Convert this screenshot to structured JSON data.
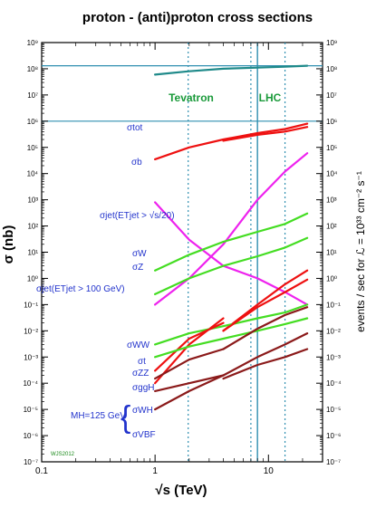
{
  "chart_data": {
    "type": "line",
    "title": "proton - (anti)proton cross sections",
    "xlabel": "√s  (TeV)",
    "ylabel_left": "σ  (nb)",
    "ylabel_right": "events / sec for ℒ = 10³³ cm⁻² s⁻¹",
    "x_scale": "log",
    "y_scale": "log",
    "xlim": [
      0.1,
      30
    ],
    "ylim": [
      1e-07,
      1000000000.0
    ],
    "x_ticks": [
      "0.1",
      "1",
      "10"
    ],
    "x_tick_values": [
      0.1,
      1,
      10
    ],
    "y_ticks_left": [
      "10⁻⁷",
      "10⁻⁶",
      "10⁻⁵",
      "10⁻⁴",
      "10⁻³",
      "10⁻²",
      "10⁻¹",
      "10⁰",
      "10¹",
      "10²",
      "10³",
      "10⁴",
      "10⁵",
      "10⁶",
      "10⁷",
      "10⁸",
      "10⁹"
    ],
    "y_ticks_right": [
      "10⁻⁷",
      "10⁻⁶",
      "10⁻⁵",
      "10⁻⁴",
      "10⁻³",
      "10⁻²",
      "10⁻¹",
      "10⁰",
      "10¹",
      "10²",
      "10³",
      "10⁴",
      "10⁵",
      "10⁶",
      "10⁷",
      "10⁸",
      "10⁹"
    ],
    "y_tick_exponents": [
      -7,
      -6,
      -5,
      -4,
      -3,
      -2,
      -1,
      0,
      1,
      2,
      3,
      4,
      5,
      6,
      7,
      8,
      9
    ],
    "reference_lines": {
      "horizontal_y": [
        130000000.0,
        1000000.0
      ],
      "vertical_dotted_x": [
        1.96,
        7,
        14
      ],
      "vertical_solid_x": [
        8
      ],
      "color": "#2f8fb0"
    },
    "region_labels": [
      {
        "text": "Tevatron",
        "color": "#1a9a3a"
      },
      {
        "text": "LHC",
        "color": "#1a9a3a"
      }
    ],
    "series": [
      {
        "name": "σtot",
        "color": "#1f8a8a",
        "segments": [
          [
            [
              1,
              60000000.0
            ],
            [
              2,
              80000000.0
            ],
            [
              4,
              100000000.0
            ],
            [
              8,
              110000000.0
            ],
            [
              14,
              120000000.0
            ],
            [
              22,
              130000000.0
            ]
          ]
        ]
      },
      {
        "name": "σb",
        "color": "#ee1111",
        "segments": [
          [
            [
              1,
              35000.0
            ],
            [
              2,
              100000.0
            ],
            [
              4,
              200000.0
            ],
            [
              8,
              350000.0
            ],
            [
              14,
              500000.0
            ],
            [
              22,
              800000.0
            ]
          ],
          [
            [
              4,
              180000.0
            ],
            [
              8,
              300000.0
            ],
            [
              14,
              400000.0
            ],
            [
              22,
              600000.0
            ]
          ]
        ]
      },
      {
        "name": "σjet(ETjet > √s/20)",
        "color": "#ee22ee",
        "segments": [
          [
            [
              1,
              0.1
            ],
            [
              2,
              1
            ],
            [
              4,
              20
            ],
            [
              8,
              1000.0
            ],
            [
              14,
              12000.0
            ],
            [
              22,
              60000.0
            ]
          ],
          [
            [
              1,
              800.0
            ],
            [
              2,
              30
            ],
            [
              4,
              3
            ],
            [
              8,
              1
            ],
            [
              14,
              0.3
            ],
            [
              22,
              0.1
            ]
          ]
        ]
      },
      {
        "name": "σW",
        "color": "#44dd22",
        "segments": [
          [
            [
              1,
              2
            ],
            [
              2,
              8
            ],
            [
              4,
              25
            ],
            [
              8,
              60
            ],
            [
              14,
              120
            ],
            [
              22,
              300
            ]
          ]
        ]
      },
      {
        "name": "σZ",
        "color": "#44dd22",
        "segments": [
          [
            [
              1,
              0.25
            ],
            [
              2,
              1
            ],
            [
              4,
              3
            ],
            [
              8,
              7
            ],
            [
              14,
              15
            ],
            [
              22,
              35
            ]
          ]
        ]
      },
      {
        "name": "σjet(ETjet > 100 GeV)",
        "color": "#ee1111",
        "segments": [
          [
            [
              1,
              0.0001
            ],
            [
              2,
              0.003
            ],
            [
              4,
              0.03
            ]
          ],
          [
            [
              4,
              0.01
            ],
            [
              8,
              0.1
            ],
            [
              14,
              0.6
            ],
            [
              22,
              2
            ]
          ]
        ]
      },
      {
        "name": "σWW",
        "color": "#44dd22",
        "segments": [
          [
            [
              1,
              0.003
            ],
            [
              2,
              0.008
            ],
            [
              4,
              0.015
            ],
            [
              8,
              0.03
            ],
            [
              14,
              0.05
            ],
            [
              22,
              0.1
            ]
          ]
        ]
      },
      {
        "name": "σt",
        "color": "#ee1111",
        "segments": [
          [
            [
              1,
              0.0003
            ],
            [
              2,
              0.005
            ],
            [
              4,
              0.02
            ]
          ],
          [
            [
              4,
              0.01
            ],
            [
              8,
              0.08
            ],
            [
              14,
              0.3
            ],
            [
              22,
              0.9
            ]
          ]
        ]
      },
      {
        "name": "σZZ",
        "color": "#44dd22",
        "segments": [
          [
            [
              1,
              0.001
            ],
            [
              2,
              0.0025
            ],
            [
              4,
              0.005
            ],
            [
              8,
              0.01
            ],
            [
              14,
              0.018
            ],
            [
              22,
              0.03
            ]
          ]
        ]
      },
      {
        "name": "σggH",
        "color": "#8b1a1a",
        "segments": [
          [
            [
              1,
              0.00015
            ],
            [
              2,
              0.0008
            ],
            [
              4,
              0.002
            ]
          ],
          [
            [
              4,
              0.002
            ],
            [
              8,
              0.012
            ],
            [
              14,
              0.04
            ],
            [
              22,
              0.08
            ]
          ]
        ]
      },
      {
        "name": "σWH",
        "color": "#8b1a1a",
        "segments": [
          [
            [
              1,
              5e-05
            ],
            [
              2,
              0.0001
            ],
            [
              4,
              0.0002
            ]
          ],
          [
            [
              4,
              0.00015
            ],
            [
              8,
              0.0005
            ],
            [
              14,
              0.001
            ],
            [
              22,
              0.002
            ]
          ]
        ]
      },
      {
        "name": "σVBF",
        "color": "#8b1a1a",
        "segments": [
          [
            [
              1,
              1e-05
            ],
            [
              2,
              5e-05
            ],
            [
              4,
              0.0002
            ]
          ],
          [
            [
              4,
              0.0002
            ],
            [
              8,
              0.001
            ],
            [
              14,
              0.003
            ],
            [
              22,
              0.008
            ]
          ]
        ]
      }
    ],
    "annotations": [
      {
        "text": "MH=125 GeV",
        "color": "#2233cc"
      },
      {
        "text": "WJS2012",
        "color": "#1a8a1a"
      }
    ],
    "grid": false
  }
}
